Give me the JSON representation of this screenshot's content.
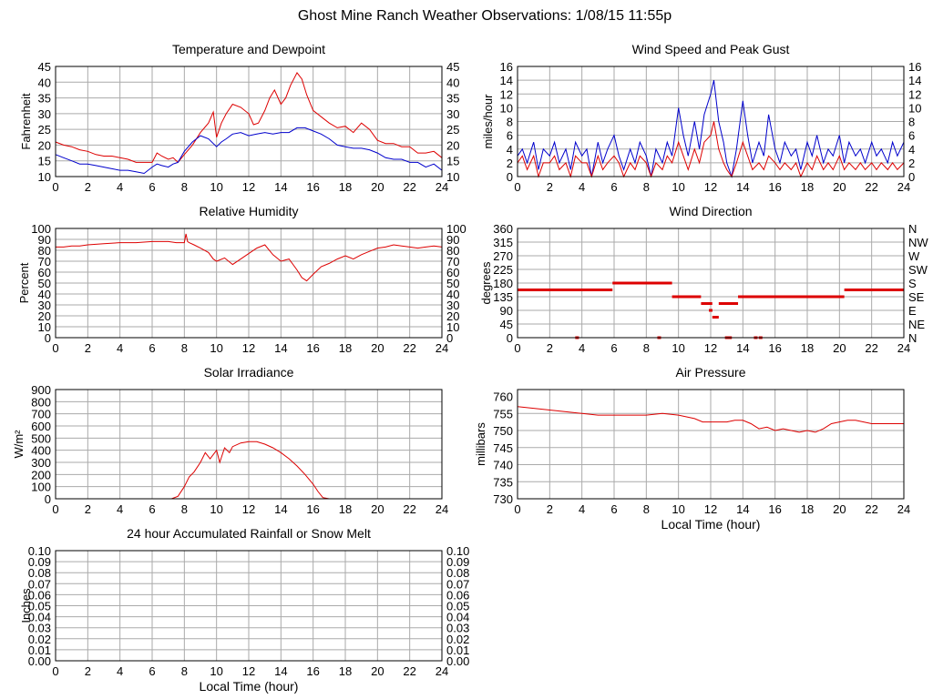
{
  "page": {
    "title": "Ghost Mine Ranch Weather Observations: 1/08/15 11:55p"
  },
  "colors": {
    "red": "#dd0000",
    "blue": "#0000cc",
    "grid": "#aaaaaa",
    "frame": "#000000"
  },
  "chart_data": [
    {
      "id": "temperature",
      "type": "line",
      "title": "Temperature and Dewpoint",
      "ylabel": "Fahrenheit",
      "xlabel": "",
      "xlim": [
        0,
        24
      ],
      "ylim": [
        10,
        45
      ],
      "xticks": [
        "0",
        "2",
        "4",
        "6",
        "8",
        "10",
        "12",
        "14",
        "16",
        "18",
        "20",
        "22",
        "24"
      ],
      "yticks": [
        "10",
        "15",
        "20",
        "25",
        "30",
        "35",
        "40",
        "45"
      ],
      "right_ticks": [
        "10",
        "15",
        "20",
        "25",
        "30",
        "35",
        "40",
        "45"
      ],
      "grid": true,
      "series": [
        {
          "color": "red",
          "x": [
            0,
            0.5,
            1,
            1.5,
            2,
            2.5,
            3,
            3.5,
            4,
            4.5,
            5,
            5.5,
            6,
            6.3,
            6.6,
            7,
            7.3,
            7.6,
            8,
            8.5,
            9,
            9.5,
            9.8,
            10,
            10.3,
            10.6,
            11,
            11.5,
            12,
            12.3,
            12.6,
            13,
            13.3,
            13.6,
            14,
            14.3,
            14.6,
            15,
            15.3,
            15.6,
            16,
            16.5,
            17,
            17.5,
            18,
            18.5,
            19,
            19.5,
            20,
            20.5,
            21,
            21.5,
            22,
            22.5,
            23,
            23.5,
            24
          ],
          "y": [
            21,
            20,
            19.5,
            18.5,
            18,
            17,
            16.5,
            16.5,
            16,
            15.5,
            14.5,
            14.5,
            14.5,
            17.5,
            16.5,
            15.5,
            16,
            14.5,
            17,
            20,
            24,
            27,
            30.5,
            22.5,
            27,
            30,
            33,
            32,
            30,
            26.5,
            27,
            31,
            35,
            37.5,
            33,
            35,
            39,
            43,
            41,
            36,
            31,
            29,
            27,
            25.5,
            26,
            24,
            27,
            25,
            21.5,
            20.5,
            20.5,
            19.5,
            19.5,
            17.5,
            17.5,
            18,
            16
          ]
        },
        {
          "color": "blue",
          "x": [
            0,
            0.5,
            1,
            1.5,
            2,
            2.5,
            3,
            3.5,
            4,
            4.5,
            5,
            5.5,
            6,
            6.3,
            6.6,
            7,
            7.3,
            7.6,
            8,
            8.5,
            9,
            9.5,
            10,
            10.3,
            10.6,
            11,
            11.5,
            12,
            12.5,
            13,
            13.5,
            14,
            14.5,
            15,
            15.5,
            16,
            16.5,
            17,
            17.5,
            18,
            18.5,
            19,
            19.5,
            20,
            20.5,
            21,
            21.5,
            22,
            22.5,
            23,
            23.5,
            24
          ],
          "y": [
            17,
            16,
            15,
            14,
            14,
            13.5,
            13,
            12.5,
            12,
            12,
            11.5,
            11,
            13,
            14,
            13.5,
            13,
            14,
            14.5,
            18,
            21,
            23,
            22,
            19.5,
            21,
            22,
            23.5,
            24,
            23,
            23.5,
            24,
            23.5,
            24,
            24,
            25.5,
            25.5,
            24.5,
            23.5,
            22,
            20,
            19.5,
            19,
            19,
            18.5,
            17.5,
            16,
            15.5,
            15.5,
            14.5,
            14.5,
            13,
            14,
            12
          ]
        }
      ]
    },
    {
      "id": "wind",
      "type": "line",
      "title": "Wind Speed and Peak Gust",
      "ylabel": "miles/hour",
      "xlabel": "",
      "xlim": [
        0,
        24
      ],
      "ylim": [
        0,
        16
      ],
      "xticks": [
        "0",
        "2",
        "4",
        "6",
        "8",
        "10",
        "12",
        "14",
        "16",
        "18",
        "20",
        "22",
        "24"
      ],
      "yticks": [
        "0",
        "2",
        "4",
        "6",
        "8",
        "10",
        "12",
        "14",
        "16"
      ],
      "right_ticks": [
        "0",
        "2",
        "4",
        "6",
        "8",
        "10",
        "12",
        "14",
        "16"
      ],
      "grid": true,
      "series": [
        {
          "color": "blue",
          "x": [
            0,
            0.3,
            0.6,
            1,
            1.3,
            1.6,
            2,
            2.3,
            2.6,
            3,
            3.3,
            3.6,
            4,
            4.3,
            4.6,
            5,
            5.3,
            5.6,
            6,
            6.3,
            6.6,
            7,
            7.3,
            7.6,
            8,
            8.3,
            8.6,
            9,
            9.3,
            9.6,
            10,
            10.3,
            10.6,
            11,
            11.3,
            11.6,
            12,
            12.2,
            12.5,
            12.8,
            13,
            13.3,
            13.6,
            14,
            14.3,
            14.6,
            15,
            15.3,
            15.6,
            16,
            16.3,
            16.6,
            17,
            17.3,
            17.6,
            18,
            18.3,
            18.6,
            19,
            19.3,
            19.6,
            20,
            20.3,
            20.6,
            21,
            21.3,
            21.6,
            22,
            22.3,
            22.6,
            23,
            23.3,
            23.6,
            24
          ],
          "y": [
            3,
            4,
            2,
            5,
            1,
            4,
            3,
            5,
            2,
            4,
            1,
            5,
            3,
            4,
            0,
            5,
            2,
            4,
            6,
            3,
            1,
            4,
            2,
            5,
            3,
            0,
            4,
            2,
            5,
            3,
            10,
            6,
            3,
            8,
            4,
            9,
            12,
            14,
            8,
            5,
            2,
            0,
            4,
            11,
            6,
            2,
            5,
            3,
            9,
            4,
            2,
            5,
            3,
            4,
            1,
            5,
            3,
            6,
            2,
            4,
            3,
            6,
            2,
            5,
            3,
            4,
            2,
            5,
            3,
            4,
            2,
            5,
            3,
            5
          ]
        },
        {
          "color": "red",
          "x": [
            0,
            0.3,
            0.6,
            1,
            1.3,
            1.6,
            2,
            2.3,
            2.6,
            3,
            3.3,
            3.6,
            4,
            4.3,
            4.6,
            5,
            5.3,
            5.6,
            6,
            6.3,
            6.6,
            7,
            7.3,
            7.6,
            8,
            8.3,
            8.6,
            9,
            9.3,
            9.6,
            10,
            10.3,
            10.6,
            11,
            11.3,
            11.6,
            12,
            12.2,
            12.5,
            12.8,
            13,
            13.3,
            13.6,
            14,
            14.3,
            14.6,
            15,
            15.3,
            15.6,
            16,
            16.3,
            16.6,
            17,
            17.3,
            17.6,
            18,
            18.3,
            18.6,
            19,
            19.3,
            19.6,
            20,
            20.3,
            20.6,
            21,
            21.3,
            21.6,
            22,
            22.3,
            22.6,
            23,
            23.3,
            23.6,
            24
          ],
          "y": [
            2,
            3,
            1,
            3,
            0,
            2,
            2,
            3,
            1,
            2,
            0,
            3,
            2,
            2,
            0,
            3,
            1,
            2,
            3,
            2,
            0,
            2,
            1,
            3,
            2,
            0,
            2,
            1,
            3,
            2,
            5,
            3,
            1,
            4,
            2,
            5,
            6,
            8,
            4,
            2,
            1,
            0,
            2,
            5,
            3,
            1,
            2,
            1,
            3,
            2,
            1,
            2,
            1,
            2,
            0,
            2,
            1,
            3,
            1,
            2,
            1,
            3,
            1,
            2,
            1,
            2,
            1,
            2,
            1,
            2,
            1,
            2,
            1,
            2
          ]
        }
      ]
    },
    {
      "id": "humidity",
      "type": "line",
      "title": "Relative Humidity",
      "ylabel": "Percent",
      "xlabel": "",
      "xlim": [
        0,
        24
      ],
      "ylim": [
        0,
        100
      ],
      "xticks": [
        "0",
        "2",
        "4",
        "6",
        "8",
        "10",
        "12",
        "14",
        "16",
        "18",
        "20",
        "22",
        "24"
      ],
      "yticks": [
        "0",
        "10",
        "20",
        "30",
        "40",
        "50",
        "60",
        "70",
        "80",
        "90",
        "100"
      ],
      "right_ticks": [
        "0",
        "10",
        "20",
        "30",
        "40",
        "50",
        "60",
        "70",
        "80",
        "90",
        "100"
      ],
      "grid": true,
      "series": [
        {
          "color": "red",
          "x": [
            0,
            0.5,
            1,
            1.5,
            2,
            3,
            4,
            5,
            6,
            7,
            7.5,
            8,
            8.1,
            8.2,
            8.3,
            8.6,
            9,
            9.5,
            9.8,
            10,
            10.5,
            11,
            11.5,
            12,
            12.5,
            13,
            13.5,
            14,
            14.5,
            15,
            15.3,
            15.6,
            16,
            16.5,
            17,
            17.5,
            18,
            18.5,
            19,
            19.5,
            20,
            20.5,
            21,
            21.5,
            22,
            22.5,
            23,
            23.5,
            24
          ],
          "y": [
            83,
            83,
            84,
            84,
            85,
            86,
            87,
            87,
            88,
            88,
            87,
            87,
            95,
            88,
            87,
            85,
            82,
            78,
            72,
            70,
            73,
            67,
            72,
            77,
            82,
            85,
            76,
            70,
            72,
            62,
            55,
            52,
            58,
            65,
            68,
            72,
            75,
            72,
            76,
            79,
            82,
            83,
            85,
            84,
            83,
            82,
            83,
            84,
            83
          ]
        }
      ]
    },
    {
      "id": "winddir",
      "type": "scatter",
      "title": "Wind Direction",
      "ylabel": "degrees",
      "xlabel": "",
      "xlim": [
        0,
        24
      ],
      "ylim": [
        0,
        360
      ],
      "xticks": [
        "0",
        "2",
        "4",
        "6",
        "8",
        "10",
        "12",
        "14",
        "16",
        "18",
        "20",
        "22",
        "24"
      ],
      "yticks": [
        "0",
        "45",
        "90",
        "135",
        "180",
        "225",
        "270",
        "315",
        "360"
      ],
      "right_ticks": [
        "N",
        "NE",
        "E",
        "SE",
        "S",
        "SW",
        "W",
        "NW",
        "N"
      ],
      "grid": true,
      "segments": [
        {
          "x0": 0,
          "x1": 5.9,
          "y": 157.5
        },
        {
          "x0": 5.9,
          "x1": 9.6,
          "y": 180
        },
        {
          "x0": 9.6,
          "x1": 11.4,
          "y": 135
        },
        {
          "x0": 11.4,
          "x1": 12.1,
          "y": 112.5
        },
        {
          "x0": 12.1,
          "x1": 12.5,
          "y": 67.5
        },
        {
          "x0": 12.5,
          "x1": 13.7,
          "y": 112.5
        },
        {
          "x0": 13.7,
          "x1": 20.3,
          "y": 135
        },
        {
          "x0": 20.3,
          "x1": 24,
          "y": 157.5
        }
      ],
      "points": [
        {
          "x": 3.7,
          "y": 0
        },
        {
          "x": 8.8,
          "y": 0
        },
        {
          "x": 12.0,
          "y": 90
        },
        {
          "x": 13.0,
          "y": 0
        },
        {
          "x": 13.2,
          "y": 0
        },
        {
          "x": 14.8,
          "y": 0
        },
        {
          "x": 15.1,
          "y": 0
        }
      ]
    },
    {
      "id": "solar",
      "type": "line",
      "title": "Solar Irradiance",
      "ylabel": "W/m²",
      "xlabel": "",
      "xlim": [
        0,
        24
      ],
      "ylim": [
        0,
        900
      ],
      "xticks": [
        "0",
        "2",
        "4",
        "6",
        "8",
        "10",
        "12",
        "14",
        "16",
        "18",
        "20",
        "22",
        "24"
      ],
      "yticks": [
        "0",
        "100",
        "200",
        "300",
        "400",
        "500",
        "600",
        "700",
        "800",
        "900"
      ],
      "right_ticks": [],
      "grid": true,
      "series": [
        {
          "color": "red",
          "x": [
            0,
            7.2,
            7.6,
            8,
            8.3,
            8.6,
            9,
            9.3,
            9.6,
            10,
            10.2,
            10.5,
            10.8,
            11,
            11.5,
            12,
            12.5,
            13,
            13.5,
            14,
            14.5,
            15,
            15.5,
            16,
            16.3,
            16.6,
            17,
            24
          ],
          "y": [
            0,
            0,
            20,
            100,
            180,
            220,
            300,
            380,
            330,
            400,
            300,
            420,
            380,
            430,
            460,
            470,
            470,
            450,
            420,
            380,
            330,
            270,
            200,
            120,
            60,
            10,
            0,
            0
          ]
        }
      ]
    },
    {
      "id": "pressure",
      "type": "line",
      "title": "Air Pressure",
      "ylabel": "millibars",
      "xlabel": "Local Time (hour)",
      "xlim": [
        0,
        24
      ],
      "ylim": [
        730,
        762
      ],
      "xticks": [
        "0",
        "2",
        "4",
        "6",
        "8",
        "10",
        "12",
        "14",
        "16",
        "18",
        "20",
        "22",
        "24"
      ],
      "yticks": [
        "730",
        "735",
        "740",
        "745",
        "750",
        "755",
        "760"
      ],
      "right_ticks": [],
      "grid": true,
      "series": [
        {
          "color": "red",
          "x": [
            0,
            1,
            2,
            3,
            4,
            5,
            6,
            7,
            8,
            9,
            10,
            11,
            11.5,
            12,
            12.5,
            13,
            13.5,
            14,
            14.5,
            15,
            15.5,
            16,
            16.5,
            17,
            17.5,
            18,
            18.5,
            19,
            19.5,
            20,
            20.5,
            21,
            21.5,
            22,
            22.5,
            23,
            24
          ],
          "y": [
            757,
            756.5,
            756,
            755.5,
            755,
            754.5,
            754.5,
            754.5,
            754.5,
            755,
            754.5,
            753.5,
            752.5,
            752.5,
            752.5,
            752.5,
            753,
            753,
            752,
            750.5,
            751,
            750,
            750.5,
            750,
            749.5,
            750,
            749.5,
            750.5,
            752,
            752.5,
            753,
            753,
            752.5,
            752,
            752,
            752,
            752
          ]
        }
      ]
    },
    {
      "id": "rain",
      "type": "line",
      "title": "24 hour Accumulated Rainfall or Snow Melt",
      "ylabel": "Inches",
      "xlabel": "Local Time (hour)",
      "xlim": [
        0,
        24
      ],
      "ylim": [
        0,
        0.1
      ],
      "xticks": [
        "0",
        "2",
        "4",
        "6",
        "8",
        "10",
        "12",
        "14",
        "16",
        "18",
        "20",
        "22",
        "24"
      ],
      "yticks": [
        "0.00",
        "0.01",
        "0.02",
        "0.03",
        "0.04",
        "0.05",
        "0.06",
        "0.07",
        "0.08",
        "0.09",
        "0.10"
      ],
      "right_ticks": [
        "0.00",
        "0.01",
        "0.02",
        "0.03",
        "0.04",
        "0.05",
        "0.06",
        "0.07",
        "0.08",
        "0.09",
        "0.10"
      ],
      "grid": true,
      "series": [
        {
          "color": "red",
          "x": [
            0,
            24
          ],
          "y": [
            0,
            0
          ]
        }
      ]
    }
  ]
}
